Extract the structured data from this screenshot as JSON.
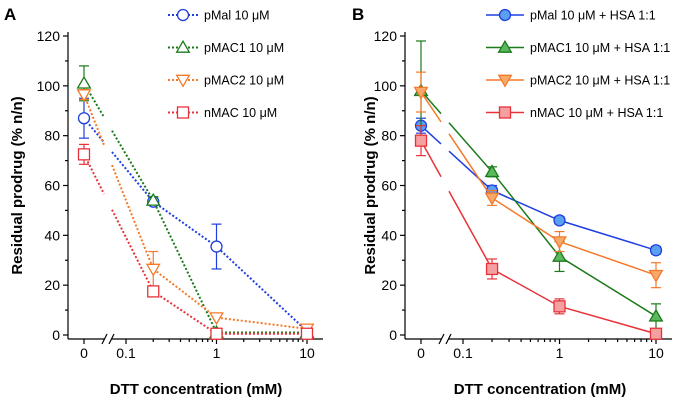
{
  "chart_data": [
    {
      "panel": "A",
      "type": "line",
      "line_style": "dotted",
      "marker_fill": "open",
      "title": "",
      "xlabel": "DTT concentration (mM)",
      "ylabel": "Residual prodrug (% n/n)",
      "x_scale": "log with broken axis at 0",
      "x_ticks": [
        "0",
        "0.1",
        "1",
        "10"
      ],
      "y_ticks": [
        "0",
        "20",
        "40",
        "60",
        "80",
        "100",
        "120"
      ],
      "ylim": [
        0,
        120
      ],
      "x": [
        0,
        0.2,
        1,
        10
      ],
      "legend_position": "top-right",
      "series": [
        {
          "name": "pMal 10 μM",
          "marker": "circle",
          "color": "#1f3fe0",
          "values": [
            87,
            53.5,
            35.5,
            1.5
          ],
          "errors": [
            8,
            1.5,
            9,
            0.5
          ]
        },
        {
          "name": "pMAC1 10 μM",
          "marker": "triangle-up",
          "color": "#1a7a1a",
          "values": [
            101,
            54,
            1,
            1
          ],
          "errors": [
            7,
            1.5,
            0.5,
            0.5
          ]
        },
        {
          "name": "pMAC2 10 μM",
          "marker": "triangle-down",
          "color": "#f5792a",
          "values": [
            96.5,
            26.5,
            7,
            2.5
          ],
          "errors": [
            2,
            7,
            0.5,
            0.5
          ]
        },
        {
          "name": "nMAC 10 μM",
          "marker": "square",
          "color": "#e8323a",
          "values": [
            72.5,
            17.5,
            0.5,
            0.5
          ],
          "errors": [
            4,
            2,
            0.5,
            0.5
          ]
        }
      ]
    },
    {
      "panel": "B",
      "type": "line",
      "line_style": "solid",
      "marker_fill": "filled",
      "title": "",
      "xlabel": "DTT concentration (mM)",
      "ylabel": "Residual prodrug (% n/n)",
      "x_scale": "log with broken axis at 0",
      "x_ticks": [
        "0",
        "0.1",
        "1",
        "10"
      ],
      "y_ticks": [
        "0",
        "20",
        "40",
        "60",
        "80",
        "100",
        "120"
      ],
      "ylim": [
        0,
        120
      ],
      "x": [
        0,
        0.2,
        1,
        10
      ],
      "legend_position": "top-right",
      "series": [
        {
          "name": "pMal 10 μM + HSA 1:1",
          "marker": "circle",
          "color": "#1f3fe0",
          "fill": "#5aa0f0",
          "values": [
            84,
            58,
            46,
            34
          ],
          "errors": [
            3,
            2,
            1.5,
            1.5
          ]
        },
        {
          "name": "pMAC1 10 μM + HSA 1:1",
          "marker": "triangle-up",
          "color": "#1a7a1a",
          "fill": "#5cb85c",
          "values": [
            98,
            65.5,
            31.5,
            7.5
          ],
          "errors": [
            20,
            2,
            6,
            5
          ]
        },
        {
          "name": "pMAC2 10 μM + HSA 1:1",
          "marker": "triangle-down",
          "color": "#f5792a",
          "fill": "#f8a96a",
          "values": [
            97.5,
            55,
            37.5,
            24
          ],
          "errors": [
            8,
            3,
            4,
            5
          ]
        },
        {
          "name": "nMAC 10 μM + HSA 1:1",
          "marker": "square",
          "color": "#e8323a",
          "fill": "#f5a0a0",
          "values": [
            78,
            26.5,
            11.5,
            0.5
          ],
          "errors": [
            6,
            4,
            3,
            1
          ]
        }
      ]
    }
  ]
}
